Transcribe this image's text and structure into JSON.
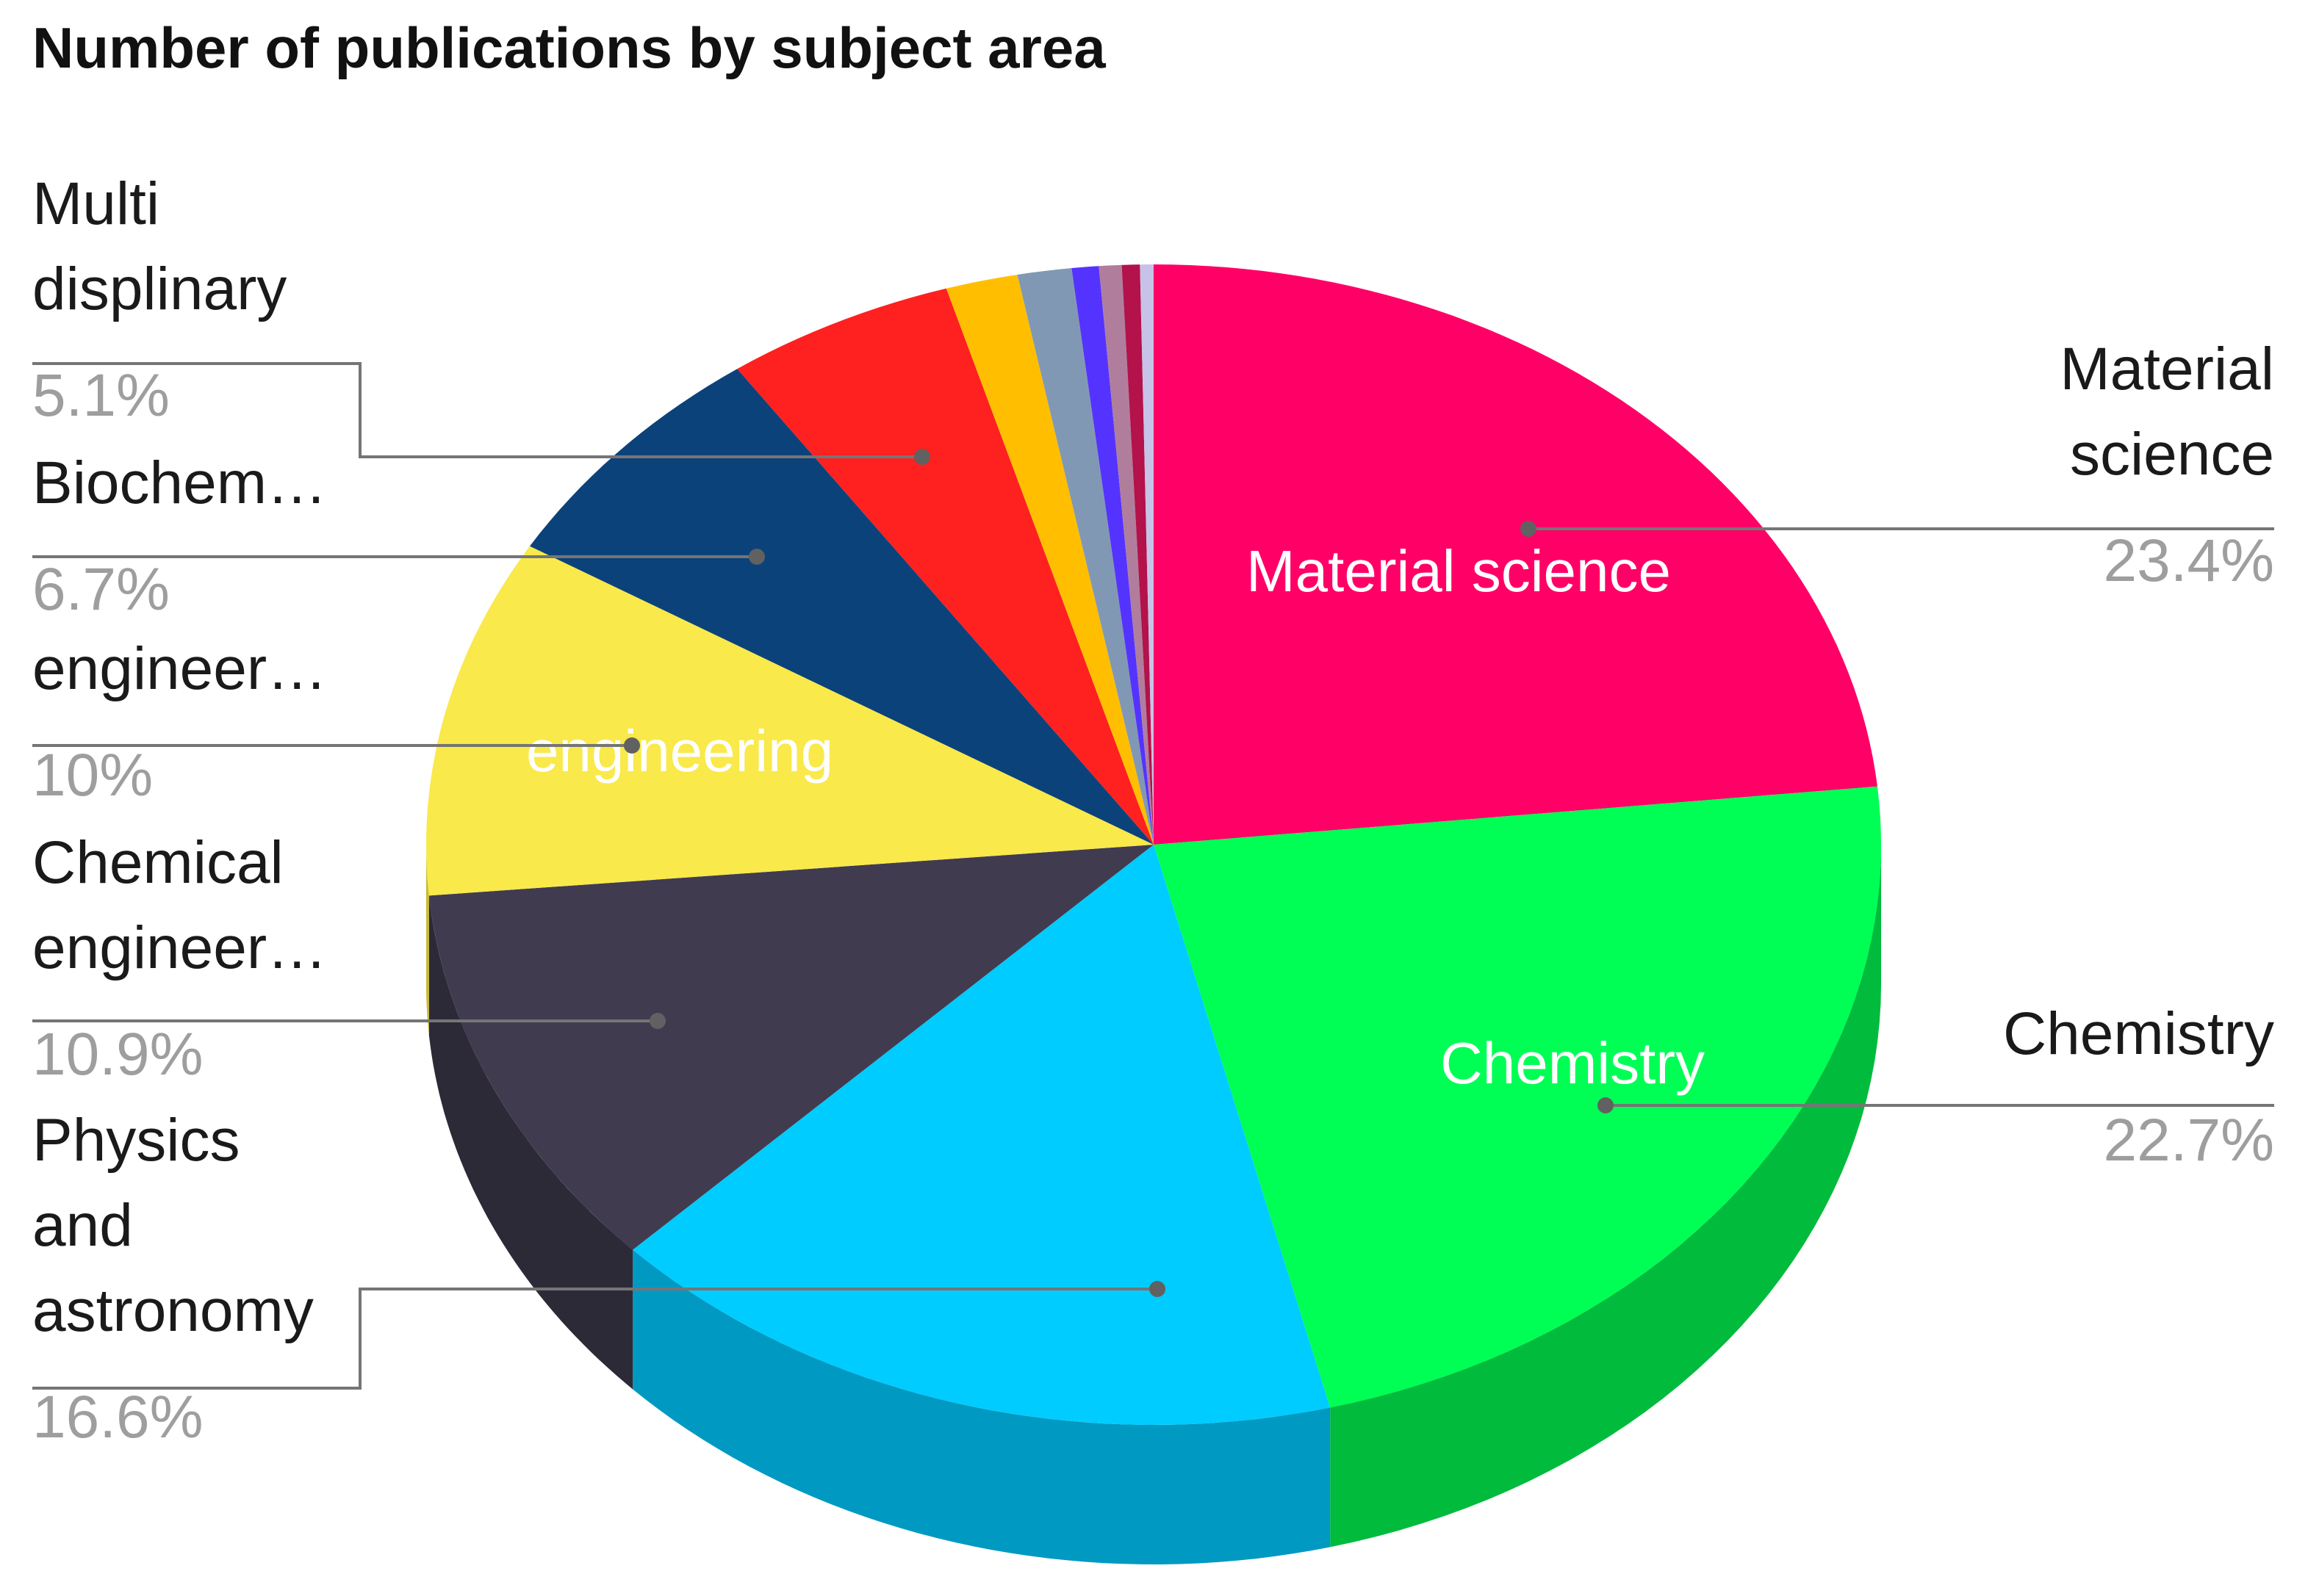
{
  "chart_data": {
    "type": "pie",
    "title": "Number of publications by subject area",
    "slices": [
      {
        "label": "Material science",
        "value": 23.4,
        "pct_text": "23.4%",
        "color": "#FF0066",
        "side_color": "#C8004F",
        "ext_label_lines": [
          "Material",
          "science"
        ],
        "inner_label": "Material science"
      },
      {
        "label": "Chemistry",
        "value": 22.7,
        "pct_text": "22.7%",
        "color": "#00FF55",
        "side_color": "#00BB3C",
        "ext_label_lines": [
          "Chemistry"
        ],
        "inner_label": "Chemistry"
      },
      {
        "label": "Physics and astronomy",
        "value": 16.6,
        "pct_text": "16.6%",
        "color": "#00CCFF",
        "side_color": "#0099C2",
        "ext_label_lines": [
          "Physics",
          "and",
          "astronomy"
        ],
        "inner_label": ""
      },
      {
        "label": "Chemical engineer…",
        "value": 10.9,
        "pct_text": "10.9%",
        "color": "#413B50",
        "side_color": "#2D2A38",
        "ext_label_lines": [
          "Chemical",
          "engineer…"
        ],
        "inner_label": ""
      },
      {
        "label": "engineer…",
        "value": 10.0,
        "pct_text": "10%",
        "color": "#F9E94A",
        "side_color": "#C9BB30",
        "ext_label_lines": [
          "engineer…"
        ],
        "inner_label": "engineering"
      },
      {
        "label": "Biochem…",
        "value": 6.7,
        "pct_text": "6.7%",
        "color": "#0B427A",
        "side_color": "#062C54",
        "ext_label_lines": [
          "Biochem…"
        ],
        "inner_label": ""
      },
      {
        "label": "Multi displinary",
        "value": 5.1,
        "pct_text": "5.1%",
        "color": "#FF2020",
        "side_color": "#C01515",
        "ext_label_lines": [
          "Multi",
          "displinary"
        ],
        "inner_label": ""
      },
      {
        "label": "",
        "value": 1.6,
        "pct_text": "",
        "color": "#FFBF00",
        "side_color": "#C99500",
        "ext_label_lines": [],
        "inner_label": ""
      },
      {
        "label": "",
        "value": 1.2,
        "pct_text": "",
        "color": "#8198B5",
        "side_color": "#5F7490",
        "ext_label_lines": [],
        "inner_label": ""
      },
      {
        "label": "",
        "value": 0.6,
        "pct_text": "",
        "color": "#5533FF",
        "side_color": "#3E22C4",
        "ext_label_lines": [],
        "inner_label": ""
      },
      {
        "label": "",
        "value": 0.5,
        "pct_text": "",
        "color": "#B07E9C",
        "side_color": "#865D76",
        "ext_label_lines": [],
        "inner_label": ""
      },
      {
        "label": "",
        "value": 0.4,
        "pct_text": "",
        "color": "#B3124A",
        "side_color": "#860C37",
        "ext_label_lines": [],
        "inner_label": ""
      },
      {
        "label": "",
        "value": 0.3,
        "pct_text": "",
        "color": "#C7C2E8",
        "side_color": "#9A95BD",
        "ext_label_lines": [],
        "inner_label": ""
      }
    ],
    "legend": "outside labels with leader lines",
    "style": "3d-tilted-pie"
  }
}
